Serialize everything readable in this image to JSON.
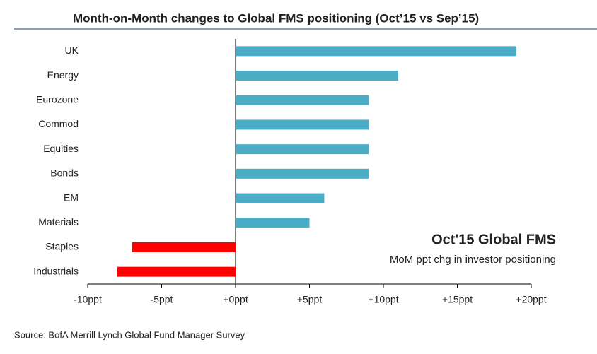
{
  "chart_data": {
    "type": "barh",
    "title": "Month-on-Month changes to Global FMS positioning (Oct’15 vs Sep’15)",
    "categories": [
      "UK",
      "Energy",
      "Eurozone",
      "Commod",
      "Equities",
      "Bonds",
      "EM",
      "Materials",
      "Staples",
      "Industrials"
    ],
    "values": [
      19,
      11,
      9,
      9,
      9,
      9,
      6,
      5,
      -7,
      -8
    ],
    "colors": [
      "#4bacc6",
      "#4bacc6",
      "#4bacc6",
      "#4bacc6",
      "#4bacc6",
      "#4bacc6",
      "#4bacc6",
      "#4bacc6",
      "#ff0000",
      "#ff0000"
    ],
    "xlim": [
      -10,
      20
    ],
    "xticks": [
      {
        "value": -10,
        "label": "-10ppt"
      },
      {
        "value": -5,
        "label": "-5ppt"
      },
      {
        "value": 0,
        "label": "+0ppt"
      },
      {
        "value": 5,
        "label": "+5ppt"
      },
      {
        "value": 10,
        "label": "+10ppt"
      },
      {
        "value": 15,
        "label": "+15ppt"
      },
      {
        "value": 20,
        "label": "+20ppt"
      }
    ],
    "annotations": [
      "Oct'15 Global FMS",
      "MoM ppt chg in investor positioning"
    ],
    "source": "Source: BofA Merrill Lynch Global Fund Manager Survey"
  }
}
